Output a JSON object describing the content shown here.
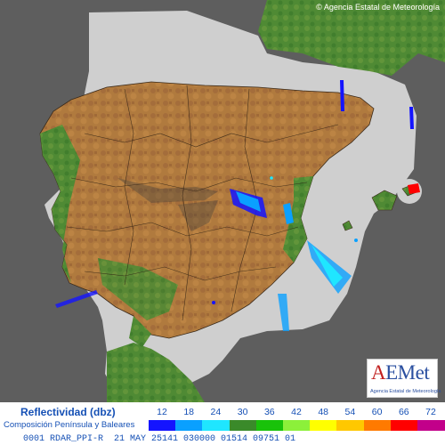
{
  "copyright": "© Agencia Estatal de Meteorología",
  "logo": {
    "mark_main": "EMet",
    "mark_accent": "A",
    "subtitle": "Agencia Estatal de Meteorología"
  },
  "legend": {
    "title": "Reflectividad (dbz)",
    "subtitle": "Composición Península y Baleares",
    "ticks": [
      "12",
      "18",
      "24",
      "30",
      "36",
      "42",
      "48",
      "54",
      "60",
      "66",
      "72"
    ],
    "colors": [
      "#1414ff",
      "#0aa0ff",
      "#1fe6ff",
      "#3a8a2a",
      "#19c20a",
      "#8cf03a",
      "#ffff00",
      "#ffc800",
      "#ff7a00",
      "#ff0000",
      "#c2008a"
    ]
  },
  "footer": "0001 RDAR_PPI-R  21 MAY 25141 030000 01514 09751 01",
  "map": {
    "sea_color": "#5e5e5e",
    "radar_coverage_color": "#cfcfcf",
    "terrain_colors": [
      "#2f6b2f",
      "#5b8f3a",
      "#a38a4f",
      "#b07a3e",
      "#8f5a2f"
    ]
  }
}
